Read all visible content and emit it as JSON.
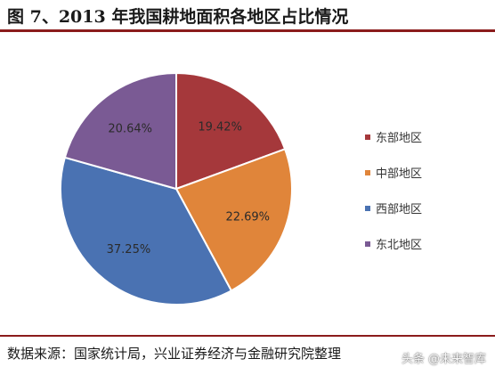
{
  "title": "图 7、2013 年我国耕地面积各地区占比情况",
  "source": "数据来源：国家统计局，兴业证券经济与金融研究院整理",
  "watermark": "头条 @未来智库",
  "chart_data": {
    "type": "pie",
    "title": "",
    "legend_position": "right",
    "start_angle_deg": 0,
    "direction": "clockwise",
    "slices": [
      {
        "label": "东部地区",
        "value": 19.42,
        "value_label": "19.42%",
        "color": "#a5383b"
      },
      {
        "label": "中部地区",
        "value": 22.69,
        "value_label": "22.69%",
        "color": "#e0853a"
      },
      {
        "label": "西部地区",
        "value": 37.25,
        "value_label": "37.25%",
        "color": "#4a72b2"
      },
      {
        "label": "东北地区",
        "value": 20.64,
        "value_label": "20.64%",
        "color": "#7a5a94"
      }
    ]
  }
}
